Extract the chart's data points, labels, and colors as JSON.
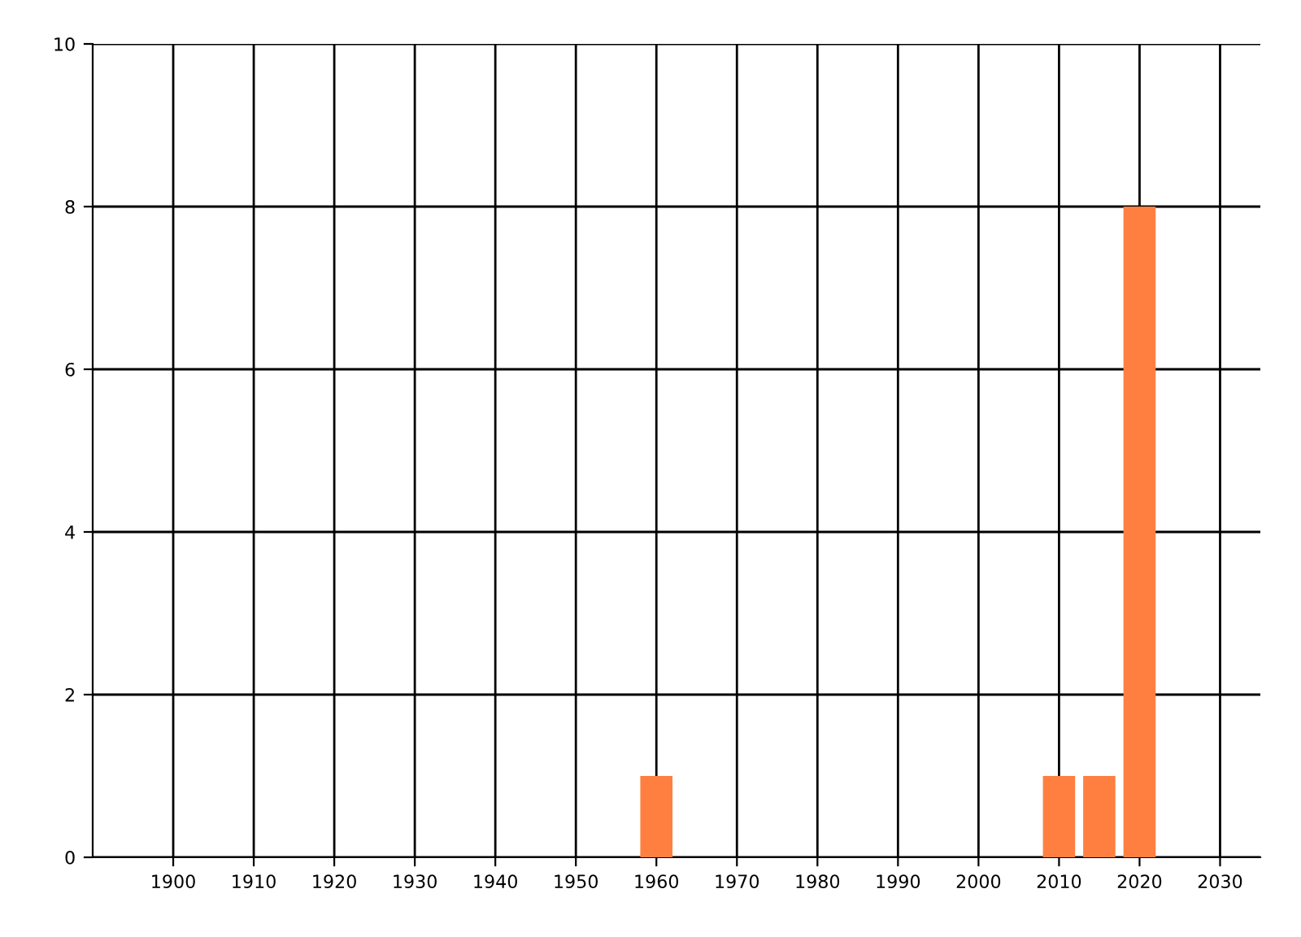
{
  "chart_data": {
    "type": "bar",
    "x": [
      1960,
      2010,
      2015,
      2020
    ],
    "values": [
      1,
      1,
      1,
      8
    ],
    "color": "#ff7f40",
    "xlim": [
      1890,
      2035
    ],
    "xticks": [
      1900,
      1910,
      1920,
      1930,
      1940,
      1950,
      1960,
      1970,
      1980,
      1990,
      2000,
      2010,
      2020,
      2030
    ],
    "ylim": [
      0,
      10
    ],
    "yticks": [
      0,
      2,
      4,
      6,
      8,
      10
    ],
    "grid": true
  }
}
